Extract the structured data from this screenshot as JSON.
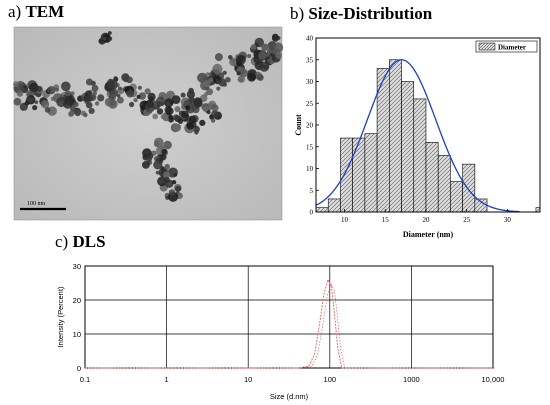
{
  "panels": {
    "tem": {
      "letter": "a)",
      "title": "TEM",
      "scale_bar_label": "100 nm"
    },
    "hist": {
      "letter": "b)",
      "title": "Size-Distribution"
    },
    "dls": {
      "letter": "c)",
      "title": "DLS"
    }
  },
  "chart_data": [
    {
      "type": "bar",
      "xlabel": "Diameter (nm)",
      "ylabel": "Count",
      "xlim": [
        6.5,
        34
      ],
      "ylim": [
        0,
        40
      ],
      "x_ticks": [
        10,
        15,
        20,
        25,
        30
      ],
      "y_ticks": [
        0,
        5,
        10,
        15,
        20,
        25,
        30,
        35,
        40
      ],
      "legend": "top-right",
      "bin_width": 1.5,
      "series": [
        {
          "name": "Diameter",
          "color": "#d9d9d9",
          "bin_starts": [
            6.5,
            8.0,
            9.5,
            11.0,
            12.5,
            14.0,
            15.5,
            17.0,
            18.5,
            20.0,
            21.5,
            23.0,
            24.5,
            26.0,
            27.5,
            29.0,
            30.5,
            32.0,
            33.5
          ],
          "values": [
            1,
            3,
            17,
            17,
            18,
            33,
            35,
            30,
            26,
            16,
            13,
            7,
            11,
            3,
            0,
            0,
            0,
            0,
            1
          ]
        }
      ],
      "fit": {
        "type": "gaussian",
        "mean": 17.0,
        "sigma": 4.2,
        "peak": 35,
        "color": "#1f3fbf"
      }
    },
    {
      "type": "line",
      "xlabel": "Size (d.nm)",
      "ylabel": "Intensity (Percent)",
      "x_scale": "log",
      "xlim": [
        0.1,
        10000
      ],
      "ylim": [
        0,
        30
      ],
      "x_ticks": [
        0.1,
        1,
        10,
        100,
        1000,
        10000
      ],
      "x_tick_labels": [
        "0.1",
        "1",
        "10",
        "100",
        "1000",
        "10,000"
      ],
      "y_ticks": [
        0,
        10,
        20,
        30
      ],
      "grid": true,
      "series": [
        {
          "color": "#e06060",
          "x": [
            0.1,
            40,
            55,
            65,
            75,
            85,
            95,
            105,
            115,
            125,
            140,
            10000
          ],
          "y": [
            0,
            0,
            0.5,
            4,
            13,
            22,
            26,
            24,
            15,
            6,
            0,
            0
          ]
        }
      ]
    }
  ]
}
